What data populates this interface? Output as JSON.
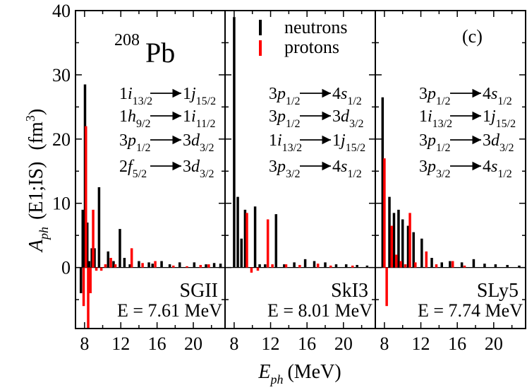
{
  "figure": {
    "nucleus_mass": "208",
    "nucleus_symbol": "Pb",
    "panel_label": "(c)",
    "y_axis_label": {
      "main": "A",
      "sub": "ph",
      "paren": "(E1;IS)",
      "unit_base": "(fm",
      "unit_sup": "3",
      "unit_close": ")"
    },
    "x_axis_label": {
      "main": "E",
      "sub": "ph",
      "unit": "(MeV)"
    },
    "legend": [
      {
        "label": "neutrons",
        "color": "#000000"
      },
      {
        "label": "protons",
        "color": "#ff0000"
      }
    ]
  },
  "chart_data": [
    {
      "type": "bar",
      "model": "SGII",
      "energy_label": "E = 7.61 MeV",
      "xlim": [
        7,
        23.5
      ],
      "ylim": [
        -9.5,
        40
      ],
      "x_ticks": [
        8,
        12,
        16,
        20
      ],
      "y_ticks": [
        0,
        10,
        20,
        30,
        40
      ],
      "transitions": [
        {
          "from": "1i",
          "from_sub": "13/2",
          "to": "1j",
          "to_sub": "15/2"
        },
        {
          "from": "1h",
          "from_sub": "9/2",
          "to": "1i",
          "to_sub": "11/2"
        },
        {
          "from": "3p",
          "from_sub": "1/2",
          "to": "3d",
          "to_sub": "3/2"
        },
        {
          "from": "2f",
          "from_sub": "5/2",
          "to": "3d",
          "to_sub": "3/2"
        }
      ],
      "series": [
        {
          "name": "neutrons",
          "color": "#000000",
          "x": [
            7.6,
            7.8,
            8.05,
            8.3,
            8.5,
            8.8,
            9.1,
            9.6,
            10.6,
            11.2,
            11.9,
            12.4,
            13.0,
            14.0,
            15.1,
            15.5,
            16.5,
            17.4,
            18.5,
            20.1,
            21.4,
            22.3,
            23.0
          ],
          "values": [
            -4.0,
            9.0,
            28.5,
            7.0,
            1.0,
            3.0,
            3.0,
            12.5,
            2.5,
            1.0,
            6.0,
            1.5,
            0.5,
            1.0,
            0.8,
            0.6,
            1.0,
            0.5,
            0.8,
            0.8,
            0.5,
            0.7,
            0.6
          ]
        },
        {
          "name": "protons",
          "color": "#ff0000",
          "x": [
            7.9,
            8.15,
            8.4,
            8.65,
            8.95,
            9.3,
            9.85,
            10.3,
            10.9,
            11.4,
            13.2,
            14.4,
            15.8,
            17.8,
            19.3,
            20.8,
            21.7
          ],
          "values": [
            -6.0,
            22.0,
            -9.5,
            -4.0,
            9.0,
            -0.5,
            -0.5,
            0.5,
            1.5,
            0.5,
            3.0,
            0.7,
            1.0,
            0.3,
            0.2,
            0.4,
            0.5
          ]
        }
      ]
    },
    {
      "type": "bar",
      "model": "SkI3",
      "energy_label": "E = 8.01 MeV",
      "xlim": [
        7,
        23.5
      ],
      "ylim": [
        -9.5,
        40
      ],
      "x_ticks": [
        8,
        12,
        16,
        20
      ],
      "y_ticks": [
        0,
        10,
        20,
        30,
        40
      ],
      "transitions": [
        {
          "from": "3p",
          "from_sub": "1/2",
          "to": "4s",
          "to_sub": "1/2"
        },
        {
          "from": "3p",
          "from_sub": "1/2",
          "to": "3d",
          "to_sub": "3/2"
        },
        {
          "from": "1i",
          "from_sub": "13/2",
          "to": "1j",
          "to_sub": "15/2"
        },
        {
          "from": "3p",
          "from_sub": "3/2",
          "to": "4s",
          "to_sub": "1/2"
        }
      ],
      "series": [
        {
          "name": "neutrons",
          "color": "#000000",
          "x": [
            8.0,
            8.4,
            8.8,
            9.2,
            10.3,
            10.8,
            11.4,
            12.6,
            13.5,
            14.6,
            15.8,
            16.8,
            18.0,
            19.2,
            20.3,
            21.5,
            22.6
          ],
          "values": [
            39.0,
            11.0,
            4.5,
            9.0,
            9.5,
            0.5,
            0.5,
            8.3,
            0.5,
            0.8,
            1.3,
            1.0,
            0.8,
            0.5,
            0.5,
            0.4,
            0.3
          ]
        },
        {
          "name": "protons",
          "color": "#ff0000",
          "x": [
            9.4,
            9.9,
            10.6,
            11.7,
            12.2,
            13.7,
            15.2,
            17.2,
            18.6,
            21.0
          ],
          "values": [
            8.5,
            -0.8,
            -0.5,
            7.5,
            0.5,
            0.5,
            0.4,
            0.6,
            0.3,
            0.3
          ]
        }
      ]
    },
    {
      "type": "bar",
      "model": "SLy5",
      "energy_label": "E = 7.74 MeV",
      "xlim": [
        7,
        23.5
      ],
      "ylim": [
        -9.5,
        40
      ],
      "x_ticks": [
        8,
        12,
        16,
        20
      ],
      "y_ticks": [
        0,
        10,
        20,
        30,
        40
      ],
      "transitions": [
        {
          "from": "3p",
          "from_sub": "1/2",
          "to": "4s",
          "to_sub": "1/2"
        },
        {
          "from": "1i",
          "from_sub": "13/2",
          "to": "1j",
          "to_sub": "15/2"
        },
        {
          "from": "3p",
          "from_sub": "1/2",
          "to": "3d",
          "to_sub": "3/2"
        },
        {
          "from": "3p",
          "from_sub": "3/2",
          "to": "4s",
          "to_sub": "1/2"
        }
      ],
      "series": [
        {
          "name": "neutrons",
          "color": "#000000",
          "x": [
            7.8,
            8.55,
            9.05,
            9.55,
            10.0,
            10.6,
            11.2,
            12.1,
            13.2,
            14.3,
            15.2,
            16.5,
            17.8,
            19.0,
            20.2,
            21.5,
            22.8
          ],
          "values": [
            26.5,
            11.0,
            8.5,
            9.0,
            7.5,
            6.5,
            5.5,
            4.5,
            1.5,
            0.8,
            1.0,
            0.8,
            1.3,
            0.6,
            0.5,
            0.4,
            0.3
          ]
        },
        {
          "name": "protons",
          "color": "#ff0000",
          "x": [
            8.0,
            8.25,
            8.8,
            9.3,
            9.8,
            10.3,
            10.8,
            11.4,
            12.6,
            13.7,
            15.5,
            16.8
          ],
          "values": [
            17.0,
            -6.0,
            6.5,
            2.0,
            1.0,
            0.5,
            8.5,
            0.8,
            2.5,
            0.5,
            1.0,
            0.3
          ]
        }
      ]
    }
  ]
}
